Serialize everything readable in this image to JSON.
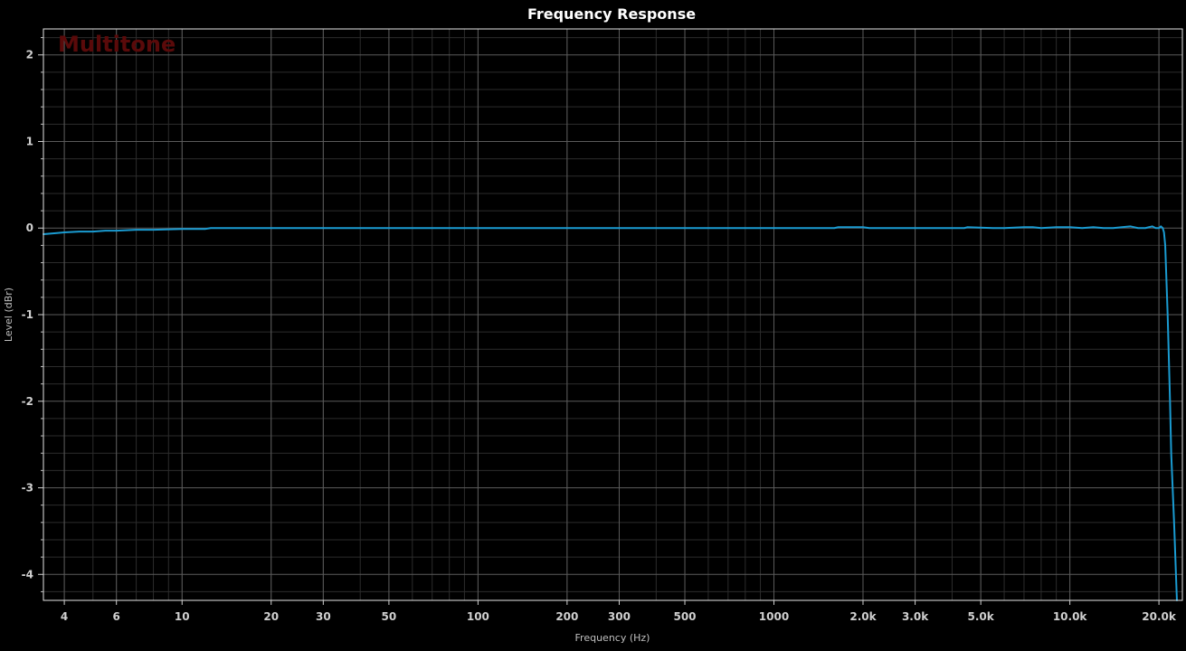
{
  "chart_data": {
    "type": "line",
    "title": "Frequency Response",
    "watermark": "Multitone",
    "xlabel": "Frequency (Hz)",
    "ylabel": "Level (dBr)",
    "x_scale": "log",
    "xlim": [
      3.4,
      24000
    ],
    "ylim": [
      -4.3,
      2.3
    ],
    "grid": true,
    "colors": {
      "background": "#000000",
      "plot_border": "#e6e6e6",
      "grid_major": "#5a5a5a",
      "grid_minor": "#2c2c2c",
      "series": "#1a9bd1"
    },
    "x_ticks": [
      {
        "value": 4,
        "label": "4"
      },
      {
        "value": 6,
        "label": "6"
      },
      {
        "value": 10,
        "label": "10"
      },
      {
        "value": 20,
        "label": "20"
      },
      {
        "value": 30,
        "label": "30"
      },
      {
        "value": 50,
        "label": "50"
      },
      {
        "value": 100,
        "label": "100"
      },
      {
        "value": 200,
        "label": "200"
      },
      {
        "value": 300,
        "label": "300"
      },
      {
        "value": 500,
        "label": "500"
      },
      {
        "value": 1000,
        "label": "1000"
      },
      {
        "value": 2000,
        "label": "2.0k"
      },
      {
        "value": 3000,
        "label": "3.0k"
      },
      {
        "value": 5000,
        "label": "5.0k"
      },
      {
        "value": 10000,
        "label": "10.0k"
      },
      {
        "value": 20000,
        "label": "20.0k"
      }
    ],
    "y_ticks": [
      {
        "value": 2,
        "label": "2"
      },
      {
        "value": 1,
        "label": "1"
      },
      {
        "value": 0,
        "label": "0"
      },
      {
        "value": -1,
        "label": "-1"
      },
      {
        "value": -2,
        "label": "-2"
      },
      {
        "value": -3,
        "label": "-3"
      },
      {
        "value": -4,
        "label": "-4"
      }
    ],
    "series": [
      {
        "name": "",
        "x": [
          3.4,
          3.7,
          4.0,
          4.5,
          5.0,
          5.5,
          6.0,
          7.0,
          8.0,
          10.0,
          12.0,
          12.5,
          20,
          50,
          100,
          500,
          1000,
          1600,
          1650,
          2000,
          2100,
          3000,
          4400,
          4500,
          5500,
          6000,
          7000,
          7500,
          8000,
          9000,
          10000,
          11000,
          12000,
          13000,
          14000,
          15000,
          16000,
          17000,
          18000,
          18500,
          19000,
          19500,
          20000,
          20300,
          20600,
          20800,
          21000,
          21200,
          21400,
          21600,
          21800,
          22000,
          22500,
          23000
        ],
        "y": [
          -0.07,
          -0.06,
          -0.05,
          -0.04,
          -0.04,
          -0.03,
          -0.03,
          -0.02,
          -0.02,
          -0.01,
          -0.01,
          0.0,
          0.0,
          0.0,
          0.0,
          0.0,
          0.0,
          0.0,
          0.01,
          0.01,
          0.0,
          0.0,
          0.0,
          0.01,
          0.0,
          0.0,
          0.01,
          0.01,
          0.0,
          0.01,
          0.01,
          0.0,
          0.01,
          0.0,
          0.0,
          0.01,
          0.02,
          0.0,
          0.0,
          0.01,
          0.02,
          0.0,
          0.0,
          0.02,
          0.0,
          -0.05,
          -0.2,
          -0.6,
          -1.0,
          -1.5,
          -2.0,
          -2.6,
          -3.4,
          -4.3
        ]
      }
    ]
  }
}
